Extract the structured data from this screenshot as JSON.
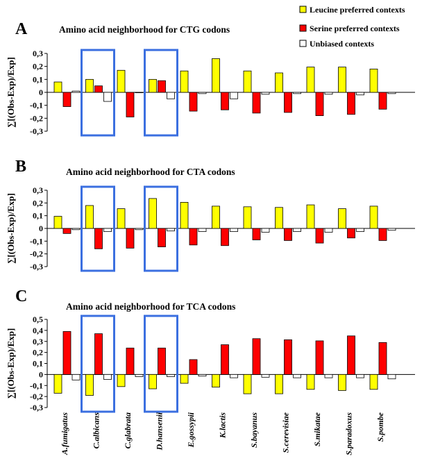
{
  "legend": {
    "items": [
      {
        "label": "Leucine preferred contexts",
        "color": "#ffff00"
      },
      {
        "label": "Serine preferred contexts",
        "color": "#ff0000"
      },
      {
        "label": "Unbiased contexts",
        "color": "#ffffff"
      }
    ]
  },
  "colors": {
    "leucine": "#ffff00",
    "serine": "#ff0000",
    "unbiased": "#ffffff",
    "highlight_box": "#3b6fe0",
    "highlight_label": "#e0141e"
  },
  "species": [
    "A.fumigatus",
    "C.albicans",
    "C.glabrata",
    "D.hansenii",
    "E.gossypii",
    "K.lactis",
    "S.bayanus",
    "S.cerevisiae",
    "S.mikatae",
    "S.paradoxus",
    "S.pombe"
  ],
  "highlighted_species": [
    "C.albicans",
    "D.hansenii"
  ],
  "chart_data": [
    {
      "type": "bar",
      "panel_letter": "A",
      "title": "Amino acid neighborhood for CTG codons",
      "ylabel": "∑[(Obs-Exp)/Exp]",
      "ylim": [
        -0.3,
        0.3
      ],
      "yticks": [
        "0,3",
        "0,2",
        "0,1",
        "0",
        "-0,1",
        "-0,2",
        "-0,3"
      ],
      "categories": [
        "A.fumigatus",
        "C.albicans",
        "C.glabrata",
        "D.hansenii",
        "E.gossypii",
        "K.lactis",
        "S.bayanus",
        "S.cerevisiae",
        "S.mikatae",
        "S.paradoxus",
        "S.pombe"
      ],
      "series": [
        {
          "name": "Leucine preferred contexts",
          "values": [
            0.08,
            0.1,
            0.17,
            0.1,
            0.165,
            0.26,
            0.165,
            0.15,
            0.195,
            0.195,
            0.18
          ]
        },
        {
          "name": "Serine preferred contexts",
          "values": [
            -0.11,
            0.05,
            -0.19,
            0.09,
            -0.145,
            -0.135,
            -0.16,
            -0.155,
            -0.18,
            -0.17,
            -0.13
          ]
        },
        {
          "name": "Unbiased contexts",
          "values": [
            0.01,
            -0.07,
            0.0,
            -0.05,
            -0.01,
            -0.05,
            -0.015,
            -0.01,
            -0.015,
            -0.02,
            -0.01
          ]
        }
      ]
    },
    {
      "type": "bar",
      "panel_letter": "B",
      "title": "Amino acid neighborhood for CTA codons",
      "ylabel": "∑[(Obs-Exp)/Exp]",
      "ylim": [
        -0.3,
        0.3
      ],
      "yticks": [
        "0,3",
        "0,2",
        "0,1",
        "0",
        "-0,1",
        "-0,2",
        "-0,3"
      ],
      "categories": [
        "A.fumigatus",
        "C.albicans",
        "C.glabrata",
        "D.hansenii",
        "E.gossypii",
        "K.lactis",
        "S.bayanus",
        "S.cerevisiae",
        "S.mikatae",
        "S.paradoxus",
        "S.pombe"
      ],
      "series": [
        {
          "name": "Leucine preferred contexts",
          "values": [
            0.095,
            0.18,
            0.155,
            0.235,
            0.205,
            0.175,
            0.17,
            0.165,
            0.185,
            0.155,
            0.175
          ]
        },
        {
          "name": "Serine preferred contexts",
          "values": [
            -0.04,
            -0.16,
            -0.155,
            -0.145,
            -0.13,
            -0.135,
            -0.09,
            -0.095,
            -0.115,
            -0.075,
            -0.095
          ]
        },
        {
          "name": "Unbiased contexts",
          "values": [
            -0.01,
            -0.025,
            -0.01,
            -0.02,
            -0.025,
            -0.025,
            -0.03,
            -0.025,
            -0.03,
            -0.025,
            -0.015
          ]
        }
      ]
    },
    {
      "type": "bar",
      "panel_letter": "C",
      "title": "Amino acid neighborhood for TCA codons",
      "ylabel": "∑[(Obs-Exp)/Exp]",
      "ylim": [
        -0.3,
        0.5
      ],
      "yticks": [
        "0,5",
        "0,4",
        "0,3",
        "0,2",
        "0,1",
        "0",
        "-0,1",
        "-0,2",
        "-0,3"
      ],
      "categories": [
        "A.fumigatus",
        "C.albicans",
        "C.glabrata",
        "D.hansenii",
        "E.gossypii",
        "K.lactis",
        "S.bayanus",
        "S.cerevisiae",
        "S.mikatae",
        "S.paradoxus",
        "S.pombe"
      ],
      "series": [
        {
          "name": "Leucine preferred contexts",
          "values": [
            -0.17,
            -0.19,
            -0.11,
            -0.13,
            -0.08,
            -0.115,
            -0.175,
            -0.175,
            -0.135,
            -0.145,
            -0.135
          ]
        },
        {
          "name": "Serine preferred contexts",
          "values": [
            0.39,
            0.37,
            0.24,
            0.24,
            0.135,
            0.27,
            0.325,
            0.315,
            0.305,
            0.35,
            0.29
          ]
        },
        {
          "name": "Unbiased contexts",
          "values": [
            -0.05,
            -0.045,
            -0.02,
            -0.02,
            -0.015,
            -0.03,
            -0.025,
            -0.03,
            -0.03,
            -0.03,
            -0.04
          ]
        }
      ]
    }
  ]
}
